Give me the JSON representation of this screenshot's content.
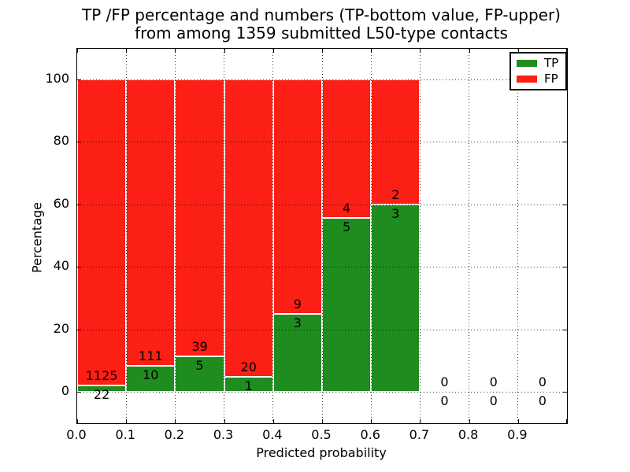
{
  "title": {
    "line1": "TP /FP percentage and numbers (TP-bottom value, FP-upper)",
    "line2": "from among 1359 submitted L50-type contacts"
  },
  "axes": {
    "xlabel": "Predicted probability",
    "ylabel": "Percentage",
    "x_tick_labels": [
      "0.0",
      "0.1",
      "0.2",
      "0.3",
      "0.4",
      "0.5",
      "0.6",
      "0.7",
      "0.8",
      "0.9"
    ],
    "y_tick_labels": [
      "0",
      "20",
      "40",
      "60",
      "80",
      "100"
    ],
    "y_tick_values": [
      0,
      20,
      40,
      60,
      80,
      100
    ]
  },
  "legend": {
    "position": "upper right",
    "items": [
      {
        "label": "TP",
        "color": "#1e8c1e"
      },
      {
        "label": "FP",
        "color": "#fb1f15"
      }
    ]
  },
  "colors": {
    "tp_green": "#1e8c1e",
    "fp_red": "#fb1f15",
    "bar_edge": "#ffffff",
    "frame": "#000000",
    "text": "#000000"
  },
  "chart_data": {
    "type": "bar",
    "stacked": true,
    "normalized_to_percent": true,
    "title": "TP /FP percentage and numbers (TP-bottom value, FP-upper) from among 1359 submitted L50-type contacts",
    "xlabel": "Predicted probability",
    "ylabel": "Percentage",
    "xlim": [
      0.0,
      1.0
    ],
    "ylim": [
      -10,
      110
    ],
    "grid": true,
    "legend_position": "upper right",
    "total_contacts": 1359,
    "bin_width": 0.1,
    "bin_starts": [
      0.0,
      0.1,
      0.2,
      0.3,
      0.4,
      0.5,
      0.6,
      0.7,
      0.8,
      0.9
    ],
    "series": [
      {
        "name": "TP",
        "color": "#1e8c1e",
        "counts": [
          22,
          10,
          5,
          1,
          3,
          5,
          3,
          0,
          0,
          0
        ]
      },
      {
        "name": "FP",
        "color": "#fb1f15",
        "counts": [
          1125,
          111,
          39,
          20,
          9,
          4,
          2,
          0,
          0,
          0
        ]
      }
    ],
    "tp_percent_of_bin": [
      1.92,
      8.26,
      11.36,
      4.76,
      25.0,
      55.56,
      60.0,
      0,
      0,
      0
    ],
    "annotation_note": "FP count printed above TP/FP boundary, TP count printed below it; empty bins show 0 above and below the zero line"
  }
}
